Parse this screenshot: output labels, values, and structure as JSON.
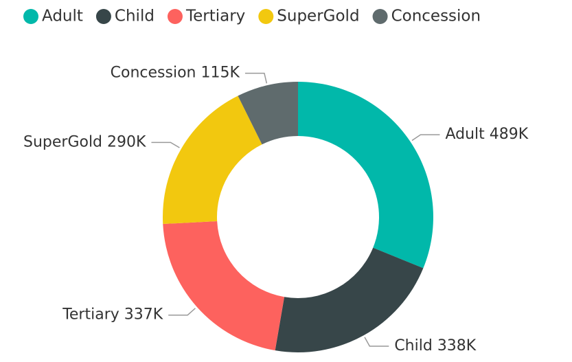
{
  "chart_data": {
    "type": "donut",
    "categories": [
      "Adult",
      "Child",
      "Tertiary",
      "SuperGold",
      "Concession"
    ],
    "values": [
      489000,
      338000,
      337000,
      290000,
      115000
    ],
    "value_labels": [
      "489K",
      "338K",
      "337K",
      "290K",
      "115K"
    ],
    "colors": [
      "#01B8AA",
      "#374649",
      "#FD625E",
      "#F2C80F",
      "#5F6B6D"
    ],
    "legend": "top"
  }
}
